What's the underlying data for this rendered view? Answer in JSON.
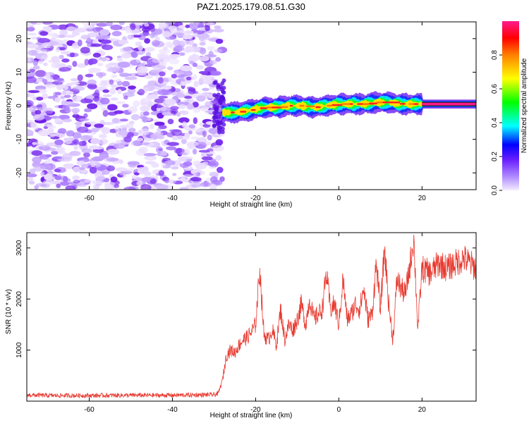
{
  "title": "PAZ1.2025.179.08.51.G30",
  "colors": {
    "snr_line": "#e83a30",
    "cloud_purple": "#7a2ee8",
    "colormap": [
      "#cfb8ff",
      "#7b2cf0",
      "#0000ff",
      "#00ffff",
      "#00ff00",
      "#ffff00",
      "#ff8000",
      "#ff0000",
      "#ff0080"
    ]
  },
  "chart_data": [
    {
      "type": "heatmap",
      "xlabel": "Height of straight line (km)",
      "ylabel": "Frequency (Hz)",
      "xlim": [
        -75,
        33
      ],
      "ylim": [
        -25,
        25
      ],
      "xticks": [
        -60,
        -40,
        -20,
        0,
        20
      ],
      "yticks": [
        -20,
        -10,
        0,
        10,
        20
      ],
      "noise_region_x": [
        -75,
        -28
      ],
      "ridge": {
        "x": [
          -28,
          -25,
          -22,
          -18,
          -15,
          -12,
          -9,
          -6,
          -3,
          0,
          3,
          6,
          9,
          12,
          15,
          18,
          20,
          25,
          33
        ],
        "freq": [
          -2,
          -2,
          -1.5,
          -0.5,
          -0.5,
          0,
          0,
          -0.5,
          0,
          0.5,
          0.5,
          0.5,
          1,
          1,
          0.5,
          0.5,
          0.5,
          0.5,
          0.5
        ]
      },
      "colorbar": {
        "label": "Normalized spectral amplitude",
        "range": [
          0,
          1
        ],
        "ticks": [
          0.0,
          0.2,
          0.4,
          0.6,
          0.8
        ]
      }
    },
    {
      "type": "line",
      "xlabel": "Height of straight line (km)",
      "ylabel": "SNR (10 * v/v)",
      "xlim": [
        -75,
        33
      ],
      "ylim": [
        0,
        3300
      ],
      "xticks": [
        -60,
        -40,
        -20,
        0,
        20
      ],
      "yticks": [
        1000,
        2000,
        3000
      ],
      "series": [
        {
          "x": [
            -75,
            -70,
            -60,
            -50,
            -40,
            -35,
            -30,
            -29,
            -28,
            -27,
            -26,
            -25,
            -24,
            -23,
            -22,
            -21,
            -20,
            -19,
            -18,
            -17,
            -16,
            -15,
            -14,
            -13,
            -12,
            -11,
            -10,
            -9,
            -8,
            -7,
            -6,
            -5,
            -4,
            -3,
            -2,
            -1,
            0,
            1,
            2,
            3,
            4,
            5,
            6,
            7,
            8,
            9,
            10,
            11,
            12,
            13,
            14,
            15,
            16,
            17,
            18,
            19,
            20,
            22,
            24,
            26,
            28,
            30,
            33
          ],
          "y": [
            120,
            110,
            110,
            115,
            115,
            120,
            125,
            150,
            400,
            900,
            1000,
            950,
            1100,
            1200,
            1250,
            1350,
            1500,
            2600,
            1300,
            1200,
            1400,
            1100,
            1800,
            1200,
            1500,
            1400,
            1600,
            1900,
            1500,
            2000,
            1600,
            1700,
            1800,
            2500,
            1800,
            1900,
            1500,
            2400,
            1600,
            1700,
            1900,
            1800,
            2200,
            1600,
            1700,
            2700,
            1800,
            3000,
            1900,
            1200,
            2400,
            2200,
            2100,
            2600,
            3200,
            1400,
            2600,
            2500,
            2700,
            2600,
            2700,
            2800,
            2600
          ]
        }
      ]
    }
  ]
}
